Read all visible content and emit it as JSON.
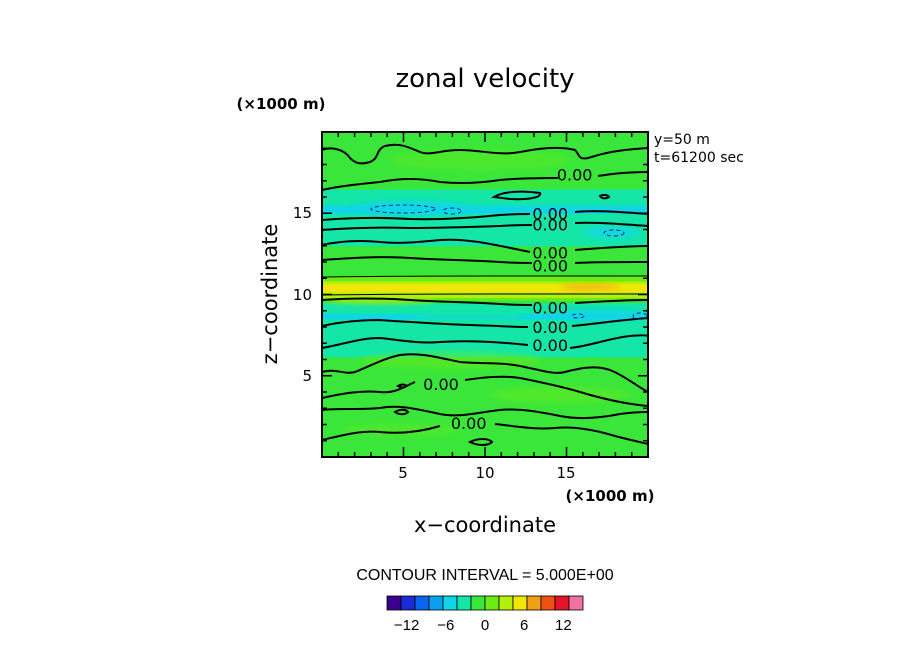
{
  "chart_data": {
    "type": "heatmap",
    "title": "zonal velocity",
    "xlabel": "x−coordinate",
    "ylabel": "z−coordinate",
    "x_unit": "(×1000 m)",
    "y_unit": "(×1000 m)",
    "xlim": [
      0,
      20
    ],
    "ylim": [
      0,
      20
    ],
    "x_ticks": [
      5,
      10,
      15
    ],
    "y_ticks": [
      5,
      10,
      15
    ],
    "x_tick_labels": [
      "5",
      "10",
      "15"
    ],
    "y_tick_labels": [
      "5",
      "10",
      "15"
    ],
    "info_lines": [
      "y=50 m",
      "t=61200 sec"
    ],
    "contour_interval_text": "CONTOUR INTERVAL = 5.000E+00",
    "contour_labels": [
      {
        "x": 15.5,
        "z": 17.4,
        "text": "0.00"
      },
      {
        "x": 14.0,
        "z": 15.0,
        "text": "0.00"
      },
      {
        "x": 14.0,
        "z": 14.3,
        "text": "0.00"
      },
      {
        "x": 14.0,
        "z": 12.6,
        "text": "0.00"
      },
      {
        "x": 14.0,
        "z": 11.8,
        "text": "0.00"
      },
      {
        "x": 14.0,
        "z": 9.2,
        "text": "0.00"
      },
      {
        "x": 14.0,
        "z": 8.0,
        "text": "0.00"
      },
      {
        "x": 14.0,
        "z": 6.9,
        "text": "0.00"
      },
      {
        "x": 7.3,
        "z": 4.5,
        "text": "0.00"
      },
      {
        "x": 9.0,
        "z": 2.1,
        "text": "0.00"
      }
    ],
    "zonal_profile": [
      {
        "z": 0,
        "u": 0.5
      },
      {
        "z": 2,
        "u": 0.8
      },
      {
        "z": 4,
        "u": 0.5
      },
      {
        "z": 6,
        "u": 0.2
      },
      {
        "z": 8,
        "u": -1.5
      },
      {
        "z": 8.8,
        "u": -3
      },
      {
        "z": 9.5,
        "u": 0
      },
      {
        "z": 10.0,
        "u": 6
      },
      {
        "z": 10.5,
        "u": 9
      },
      {
        "z": 11.2,
        "u": 2
      },
      {
        "z": 12.5,
        "u": 0.5
      },
      {
        "z": 14,
        "u": -1
      },
      {
        "z": 15.3,
        "u": -3
      },
      {
        "z": 16.5,
        "u": 0
      },
      {
        "z": 18,
        "u": 0.5
      },
      {
        "z": 20,
        "u": 0.3
      }
    ],
    "colorbar": {
      "levels": [
        -15,
        -12.5,
        -10,
        -7.5,
        -5,
        -2.5,
        0,
        2.5,
        5,
        7.5,
        10,
        12.5,
        15
      ],
      "colors": [
        "#3a008c",
        "#1a2cd6",
        "#0a64f0",
        "#0aa0f0",
        "#0fd6e6",
        "#14e6a8",
        "#3ae63a",
        "#6aec14",
        "#b4f00a",
        "#f0e60a",
        "#f0a014",
        "#f05014",
        "#e61428",
        "#f070a0"
      ],
      "tick_values": [
        -12,
        -6,
        0,
        6,
        12
      ],
      "tick_labels": [
        "−12",
        "−6",
        "0",
        "6",
        "12"
      ]
    },
    "grid": false,
    "legend": "none"
  }
}
